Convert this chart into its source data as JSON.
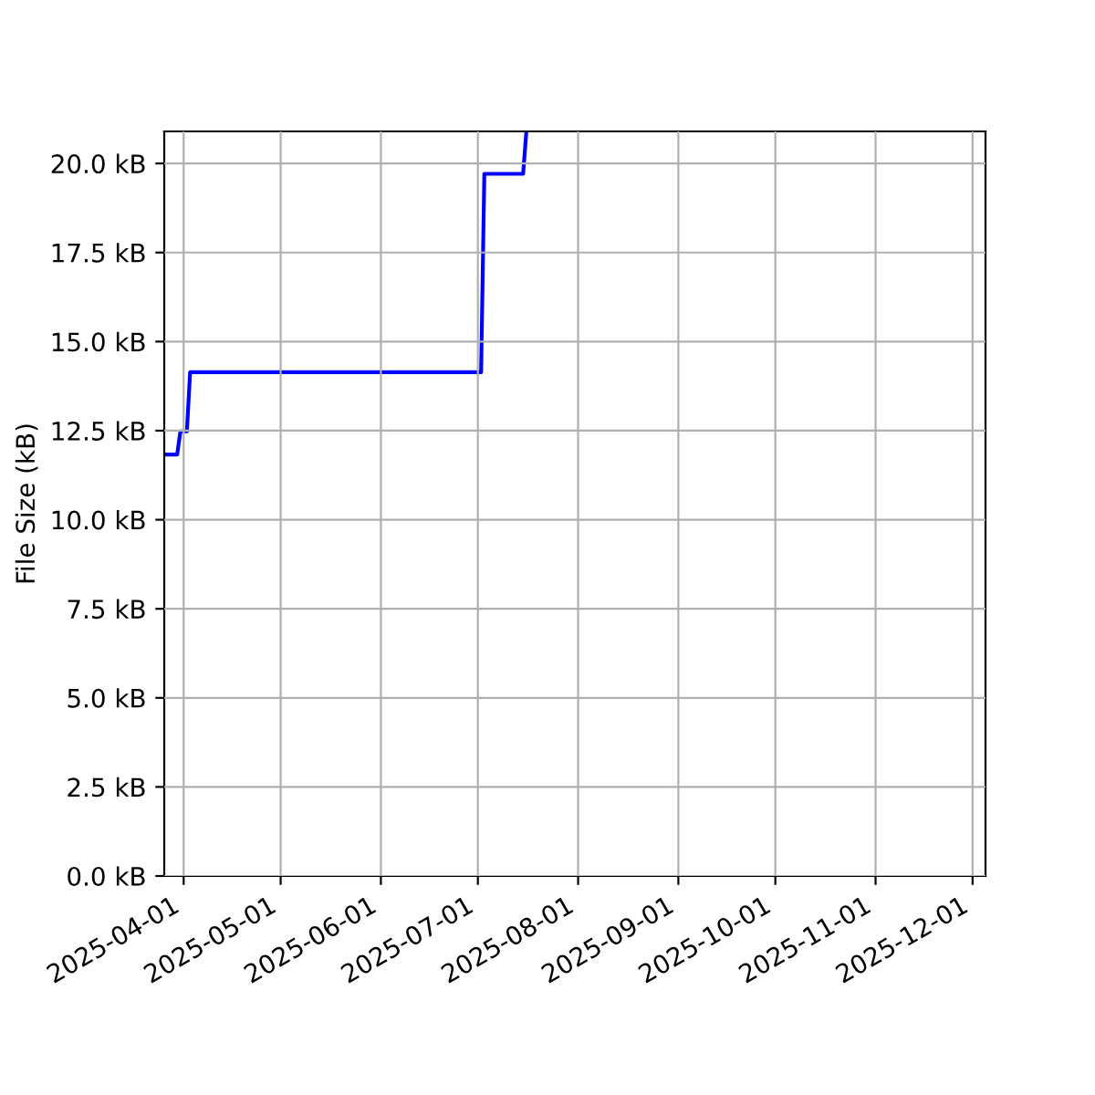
{
  "chart_data": {
    "type": "line",
    "ylabel": "File Size (kB)",
    "x": [
      "2025-03-26",
      "2025-03-30",
      "2025-03-31",
      "2025-04-02",
      "2025-04-03",
      "2025-07-02",
      "2025-07-03",
      "2025-07-15",
      "2025-07-16"
    ],
    "series": [
      {
        "color": "#0000ff",
        "values": [
          11.83,
          11.83,
          12.48,
          12.48,
          14.14,
          14.14,
          19.71,
          19.71,
          20.9
        ]
      }
    ],
    "line_style": "solid",
    "xlim": [
      "2025-03-26",
      "2025-12-05"
    ],
    "xticks": [
      "2025-04-01",
      "2025-05-01",
      "2025-06-01",
      "2025-07-01",
      "2025-08-01",
      "2025-09-01",
      "2025-10-01",
      "2025-11-01",
      "2025-12-01"
    ],
    "ylim": [
      0,
      20.9
    ],
    "yticks": [
      {
        "value": 0,
        "label": "0.0 kB"
      },
      {
        "value": 2.5,
        "label": "2.5 kB"
      },
      {
        "value": 5,
        "label": "5.0 kB"
      },
      {
        "value": 7.5,
        "label": "7.5 kB"
      },
      {
        "value": 10,
        "label": "10.0 kB"
      },
      {
        "value": 12.5,
        "label": "12.5 kB"
      },
      {
        "value": 15,
        "label": "15.0 kB"
      },
      {
        "value": 17.5,
        "label": "17.5 kB"
      },
      {
        "value": 20,
        "label": "20.0 kB"
      }
    ],
    "grid": true
  }
}
